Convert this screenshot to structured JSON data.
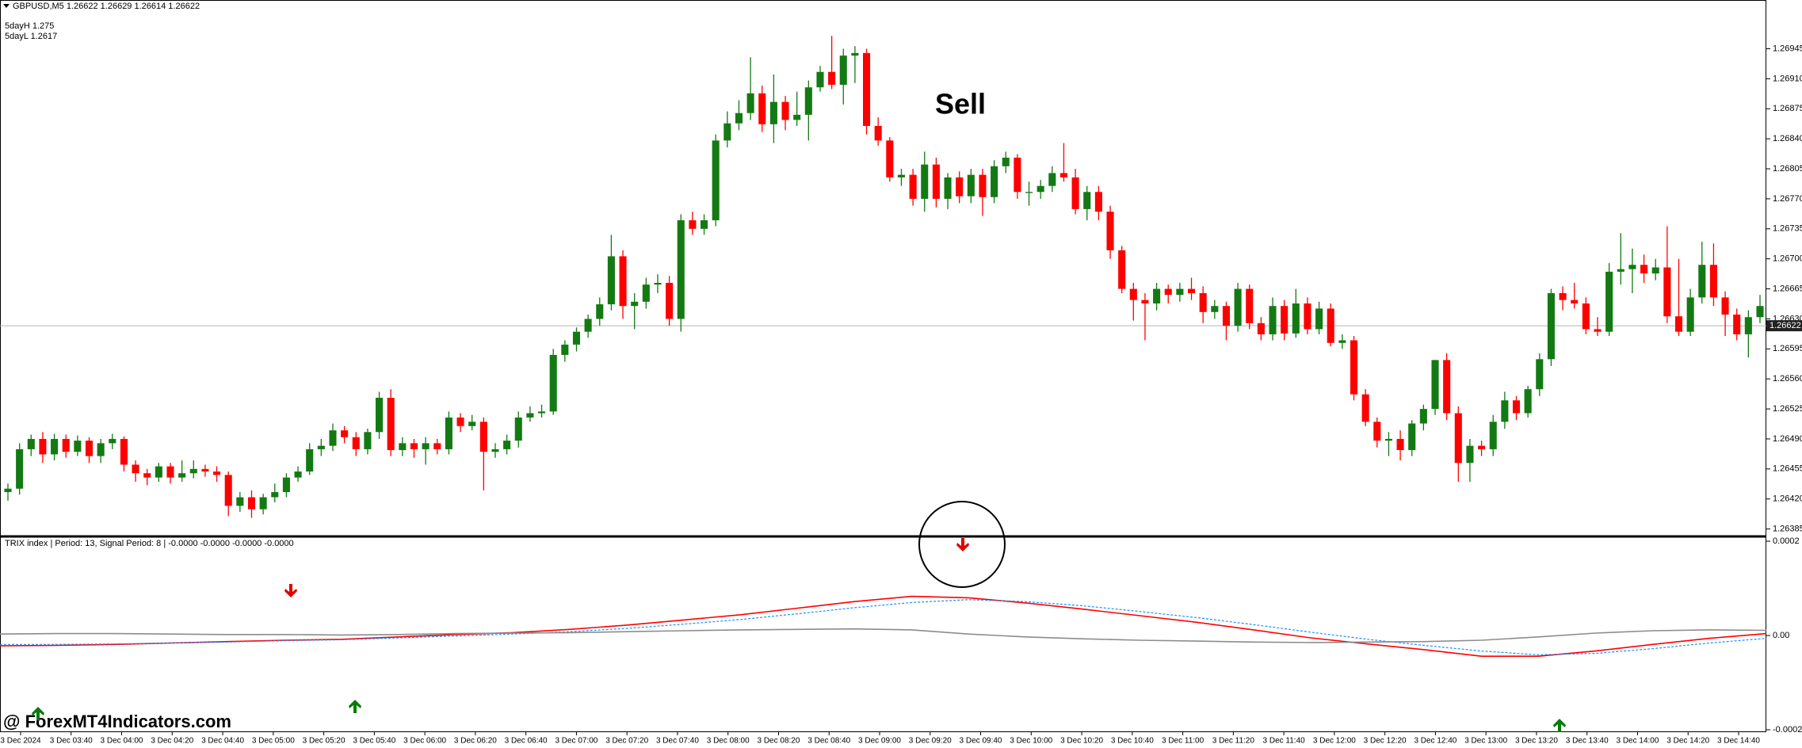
{
  "chart_data": [
    {
      "type": "candlestick",
      "title": "GBPUSD,M5  1.26622 1.26629 1.26614 1.26622",
      "annotations": [
        "5dayH 1.275",
        "5dayL 1.2617",
        "Sell"
      ],
      "up_color": "#137a13",
      "down_color": "#ff0000",
      "current_price": 1.26622,
      "ylim": [
        1.2638,
        1.27
      ],
      "yticks": [
        1.26385,
        {
          "value": 1.2642,
          "label": "1.26420"
        },
        1.26455,
        {
          "value": 1.2649,
          "label": "1.26490"
        },
        1.26525,
        {
          "value": 1.2656,
          "label": "1.26560"
        },
        1.26595,
        {
          "value": 1.2663,
          "label": "1.26630"
        },
        1.26665,
        {
          "value": 1.267,
          "label": "1.26700"
        },
        1.26735,
        {
          "value": 1.2677,
          "label": "1.26770"
        },
        1.26805,
        {
          "value": 1.2684,
          "label": "1.26840"
        },
        1.26875,
        {
          "value": 1.2691,
          "label": "1.26910"
        },
        1.26945
      ],
      "time_labels": [
        "3 Dec 2024",
        "3 Dec 03:40",
        "3 Dec 04:00",
        "3 Dec 04:20",
        "3 Dec 04:40",
        "3 Dec 05:00",
        "3 Dec 05:20",
        "3 Dec 05:40",
        "3 Dec 06:00",
        "3 Dec 06:20",
        "3 Dec 06:40",
        "3 Dec 07:00",
        "3 Dec 07:20",
        "3 Dec 07:40",
        "3 Dec 08:00",
        "3 Dec 08:20",
        "3 Dec 08:40",
        "3 Dec 09:00",
        "3 Dec 09:20",
        "3 Dec 09:40",
        "3 Dec 10:00",
        "3 Dec 10:20",
        "3 Dec 10:40",
        "3 Dec 11:00",
        "3 Dec 11:20",
        "3 Dec 11:40",
        "3 Dec 12:00",
        "3 Dec 12:20",
        "3 Dec 12:40",
        "3 Dec 13:00",
        "3 Dec 13:20",
        "3 Dec 13:40",
        "3 Dec 14:00",
        "3 Dec 14:20",
        "3 Dec 14:40"
      ],
      "ohlc": [
        [
          1.26428,
          1.26438,
          1.26418,
          1.26432
        ],
        [
          1.26432,
          1.26485,
          1.26425,
          1.26478
        ],
        [
          1.26478,
          1.26495,
          1.2647,
          1.2649
        ],
        [
          1.2649,
          1.26498,
          1.26462,
          1.26472
        ],
        [
          1.26472,
          1.26496,
          1.26465,
          1.2649
        ],
        [
          1.2649,
          1.26495,
          1.26468,
          1.26475
        ],
        [
          1.26475,
          1.26494,
          1.2647,
          1.26488
        ],
        [
          1.26488,
          1.26492,
          1.26462,
          1.2647
        ],
        [
          1.2647,
          1.2649,
          1.26462,
          1.26485
        ],
        [
          1.26485,
          1.26496,
          1.26478,
          1.2649
        ],
        [
          1.2649,
          1.26493,
          1.26452,
          1.2646
        ],
        [
          1.2646,
          1.26465,
          1.2644,
          1.2645
        ],
        [
          1.2645,
          1.26455,
          1.26436,
          1.26445
        ],
        [
          1.26445,
          1.26462,
          1.2644,
          1.26458
        ],
        [
          1.26458,
          1.26462,
          1.26438,
          1.26445
        ],
        [
          1.26445,
          1.26465,
          1.2644,
          1.2645
        ],
        [
          1.2645,
          1.26465,
          1.26444,
          1.26455
        ],
        [
          1.26455,
          1.2646,
          1.26446,
          1.26452
        ],
        [
          1.26452,
          1.26458,
          1.2644,
          1.26448
        ],
        [
          1.26448,
          1.26452,
          1.264,
          1.26412
        ],
        [
          1.26412,
          1.26428,
          1.26405,
          1.26422
        ],
        [
          1.26422,
          1.2643,
          1.26398,
          1.26408
        ],
        [
          1.26408,
          1.26426,
          1.26402,
          1.26422
        ],
        [
          1.26422,
          1.26438,
          1.26416,
          1.26428
        ],
        [
          1.26428,
          1.2645,
          1.26422,
          1.26445
        ],
        [
          1.26445,
          1.26458,
          1.2644,
          1.26452
        ],
        [
          1.26452,
          1.26485,
          1.26448,
          1.26478
        ],
        [
          1.26478,
          1.2649,
          1.2647,
          1.26482
        ],
        [
          1.26482,
          1.26508,
          1.26476,
          1.265
        ],
        [
          1.265,
          1.26505,
          1.26485,
          1.26492
        ],
        [
          1.26492,
          1.26498,
          1.2647,
          1.26478
        ],
        [
          1.26478,
          1.26502,
          1.26472,
          1.26498
        ],
        [
          1.26498,
          1.26545,
          1.2649,
          1.26538
        ],
        [
          1.26538,
          1.26548,
          1.2647,
          1.26477
        ],
        [
          1.26477,
          1.26492,
          1.2647,
          1.26485
        ],
        [
          1.26485,
          1.2649,
          1.26468,
          1.26478
        ],
        [
          1.26478,
          1.26492,
          1.2646,
          1.26485
        ],
        [
          1.26485,
          1.2649,
          1.26472,
          1.26478
        ],
        [
          1.26478,
          1.26522,
          1.26472,
          1.26515
        ],
        [
          1.26515,
          1.2652,
          1.26498,
          1.26505
        ],
        [
          1.26505,
          1.26518,
          1.265,
          1.2651
        ],
        [
          1.2651,
          1.26515,
          1.2643,
          1.26475
        ],
        [
          1.26475,
          1.26485,
          1.26468,
          1.26478
        ],
        [
          1.26478,
          1.26495,
          1.26472,
          1.26488
        ],
        [
          1.26488,
          1.26522,
          1.2648,
          1.26515
        ],
        [
          1.26515,
          1.26528,
          1.2651,
          1.2652
        ],
        [
          1.2652,
          1.2653,
          1.26515,
          1.26522
        ],
        [
          1.26522,
          1.26595,
          1.26518,
          1.26588
        ],
        [
          1.26588,
          1.26605,
          1.2658,
          1.266
        ],
        [
          1.266,
          1.2662,
          1.26592,
          1.26615
        ],
        [
          1.26615,
          1.26635,
          1.26608,
          1.2663
        ],
        [
          1.2663,
          1.26655,
          1.26622,
          1.26647
        ],
        [
          1.26647,
          1.26728,
          1.2664,
          1.26703
        ],
        [
          1.26703,
          1.2671,
          1.2663,
          1.26645
        ],
        [
          1.26645,
          1.2666,
          1.26618,
          1.2665
        ],
        [
          1.2665,
          1.26678,
          1.26642,
          1.2667
        ],
        [
          1.2667,
          1.26682,
          1.2666,
          1.26672
        ],
        [
          1.26672,
          1.2668,
          1.26622,
          1.2663
        ],
        [
          1.2663,
          1.26752,
          1.26615,
          1.26745
        ],
        [
          1.26745,
          1.26755,
          1.26728,
          1.26735
        ],
        [
          1.26735,
          1.26752,
          1.26728,
          1.26745
        ],
        [
          1.26745,
          1.26845,
          1.26738,
          1.26838
        ],
        [
          1.26838,
          1.26872,
          1.2683,
          1.26858
        ],
        [
          1.26858,
          1.26885,
          1.2685,
          1.2687
        ],
        [
          1.2687,
          1.26935,
          1.26862,
          1.26893
        ],
        [
          1.26893,
          1.26902,
          1.26848,
          1.26857
        ],
        [
          1.26857,
          1.26915,
          1.26835,
          1.26883
        ],
        [
          1.26883,
          1.2689,
          1.2685,
          1.26862
        ],
        [
          1.26862,
          1.26895,
          1.26855,
          1.26868
        ],
        [
          1.26868,
          1.26908,
          1.26838,
          1.269
        ],
        [
          1.269,
          1.26925,
          1.26895,
          1.26918
        ],
        [
          1.26918,
          1.2696,
          1.26898,
          1.26903
        ],
        [
          1.26903,
          1.26945,
          1.2688,
          1.26937
        ],
        [
          1.26937,
          1.26948,
          1.26905,
          1.2694
        ],
        [
          1.2694,
          1.26945,
          1.26845,
          1.26855
        ],
        [
          1.26855,
          1.26865,
          1.26832,
          1.26838
        ],
        [
          1.26838,
          1.26842,
          1.2679,
          1.26795
        ],
        [
          1.26795,
          1.26805,
          1.26785,
          1.26798
        ],
        [
          1.26798,
          1.26805,
          1.26762,
          1.2677
        ],
        [
          1.2677,
          1.26825,
          1.26755,
          1.2681
        ],
        [
          1.2681,
          1.26818,
          1.2676,
          1.2677
        ],
        [
          1.2677,
          1.268,
          1.26758,
          1.26795
        ],
        [
          1.26795,
          1.26802,
          1.26765,
          1.26773
        ],
        [
          1.26773,
          1.26805,
          1.26765,
          1.26798
        ],
        [
          1.26798,
          1.26805,
          1.2675,
          1.26772
        ],
        [
          1.26772,
          1.26815,
          1.26765,
          1.26808
        ],
        [
          1.26808,
          1.26825,
          1.268,
          1.26818
        ],
        [
          1.26818,
          1.26822,
          1.2677,
          1.26778
        ],
        [
          1.26778,
          1.2679,
          1.26762,
          1.26778
        ],
        [
          1.26778,
          1.26792,
          1.2677,
          1.26785
        ],
        [
          1.26785,
          1.26808,
          1.26778,
          1.268
        ],
        [
          1.268,
          1.26835,
          1.2679,
          1.26795
        ],
        [
          1.26795,
          1.26805,
          1.26752,
          1.26758
        ],
        [
          1.26758,
          1.26785,
          1.26745,
          1.26778
        ],
        [
          1.26778,
          1.26785,
          1.26745,
          1.26755
        ],
        [
          1.26755,
          1.26762,
          1.267,
          1.2671
        ],
        [
          1.2671,
          1.26715,
          1.2666,
          1.26665
        ],
        [
          1.26665,
          1.26672,
          1.26628,
          1.26652
        ],
        [
          1.26652,
          1.2666,
          1.26605,
          1.26648
        ],
        [
          1.26648,
          1.26672,
          1.2664,
          1.26665
        ],
        [
          1.26665,
          1.2667,
          1.26648,
          1.26658
        ],
        [
          1.26658,
          1.26672,
          1.2665,
          1.26665
        ],
        [
          1.26665,
          1.26678,
          1.26652,
          1.2666
        ],
        [
          1.2666,
          1.26668,
          1.26625,
          1.26638
        ],
        [
          1.26638,
          1.26652,
          1.2663,
          1.26645
        ],
        [
          1.26645,
          1.2665,
          1.26605,
          1.26622
        ],
        [
          1.26622,
          1.26672,
          1.26615,
          1.26665
        ],
        [
          1.26665,
          1.2667,
          1.26618,
          1.26625
        ],
        [
          1.26625,
          1.26632,
          1.26605,
          1.26612
        ],
        [
          1.26612,
          1.26655,
          1.26605,
          1.26645
        ],
        [
          1.26645,
          1.26652,
          1.26605,
          1.26613
        ],
        [
          1.26613,
          1.26665,
          1.26608,
          1.26648
        ],
        [
          1.26648,
          1.26655,
          1.26612,
          1.26618
        ],
        [
          1.26618,
          1.2665,
          1.26612,
          1.26642
        ],
        [
          1.26642,
          1.26648,
          1.26598,
          1.26602
        ],
        [
          1.26602,
          1.26612,
          1.26595,
          1.26605
        ],
        [
          1.26605,
          1.2661,
          1.26535,
          1.26542
        ],
        [
          1.26542,
          1.26548,
          1.26505,
          1.2651
        ],
        [
          1.2651,
          1.26515,
          1.2648,
          1.26488
        ],
        [
          1.26488,
          1.26498,
          1.2647,
          1.2649
        ],
        [
          1.2649,
          1.265,
          1.26465,
          1.26477
        ],
        [
          1.26477,
          1.26512,
          1.2647,
          1.26508
        ],
        [
          1.26508,
          1.2653,
          1.265,
          1.26525
        ],
        [
          1.26525,
          1.26582,
          1.26518,
          1.26582
        ],
        [
          1.26582,
          1.2659,
          1.26512,
          1.2652
        ],
        [
          1.2652,
          1.26528,
          1.2644,
          1.26462
        ],
        [
          1.26462,
          1.2649,
          1.2644,
          1.26482
        ],
        [
          1.26482,
          1.26488,
          1.2647,
          1.26478
        ],
        [
          1.26478,
          1.26518,
          1.2647,
          1.2651
        ],
        [
          1.2651,
          1.26545,
          1.26502,
          1.26535
        ],
        [
          1.26535,
          1.2654,
          1.26512,
          1.2652
        ],
        [
          1.2652,
          1.26552,
          1.26515,
          1.26548
        ],
        [
          1.26548,
          1.2659,
          1.2654,
          1.26583
        ],
        [
          1.26583,
          1.26665,
          1.26575,
          1.2666
        ],
        [
          1.2666,
          1.26668,
          1.2664,
          1.26652
        ],
        [
          1.26652,
          1.26672,
          1.26642,
          1.26648
        ],
        [
          1.26648,
          1.26655,
          1.26612,
          1.26618
        ],
        [
          1.26618,
          1.26632,
          1.2661,
          1.26615
        ],
        [
          1.26615,
          1.26695,
          1.2661,
          1.26685
        ],
        [
          1.26685,
          1.2673,
          1.2667,
          1.26688
        ],
        [
          1.26688,
          1.26712,
          1.2666,
          1.26693
        ],
        [
          1.26693,
          1.26705,
          1.26672,
          1.26683
        ],
        [
          1.26683,
          1.267,
          1.26675,
          1.2669
        ],
        [
          1.2669,
          1.26738,
          1.26625,
          1.26633
        ],
        [
          1.26633,
          1.267,
          1.2661,
          1.26615
        ],
        [
          1.26615,
          1.26665,
          1.2661,
          1.26655
        ],
        [
          1.26655,
          1.2672,
          1.26648,
          1.26693
        ],
        [
          1.26693,
          1.26718,
          1.26645,
          1.26655
        ],
        [
          1.26655,
          1.26662,
          1.2661,
          1.26635
        ],
        [
          1.26635,
          1.26642,
          1.26605,
          1.26612
        ],
        [
          1.26612,
          1.2664,
          1.26585,
          1.26632
        ],
        [
          1.26632,
          1.26658,
          1.26625,
          1.26645
        ]
      ]
    },
    {
      "type": "line",
      "title": "TRIX index | Period: 13, Signal Period: 8 | -0.0000 -0.0000 -0.0000 -0.0000",
      "ylim": [
        -0.0002,
        0.0002
      ],
      "yticks": [
        0.0002,
        {
          "value": 0,
          "label": "0.00"
        },
        -0.0002
      ],
      "series": [
        {
          "color": "#ff0000",
          "dashed": false,
          "values": [
            -2.2e-05,
            -2.1e-05,
            -1.9e-05,
            -1.6e-05,
            -1.3e-05,
            -1e-05,
            -8e-06,
            -3e-06,
            2e-06,
            6e-06,
            1.3e-05,
            2.2e-05,
            3.3e-05,
            4.4e-05,
            5.8e-05,
            7.2e-05,
            8.3e-05,
            8e-05,
            6.9e-05,
            5.6e-05,
            4.2e-05,
            2.8e-05,
            1.2e-05,
            -5e-06,
            -1.8e-05,
            -3e-05,
            -4.4e-05,
            -4.4e-05,
            -3.3e-05,
            -1.9e-05,
            -6e-06,
            4e-06
          ]
        },
        {
          "color": "#1e90ff",
          "dashed": true,
          "values": [
            -1.9e-05,
            -1.9e-05,
            -1.8e-05,
            -1.6e-05,
            -1.4e-05,
            -1.1e-05,
            -9e-06,
            -5e-06,
            -1e-06,
            3e-06,
            8e-06,
            1.5e-05,
            2.4e-05,
            3.4e-05,
            4.6e-05,
            5.9e-05,
            7e-05,
            7.6e-05,
            7.2e-05,
            6.3e-05,
            5.1e-05,
            3.8e-05,
            2.3e-05,
            7e-06,
            -8e-06,
            -2.1e-05,
            -3.3e-05,
            -4.1e-05,
            -3.8e-05,
            -2.8e-05,
            -1.6e-05,
            -6e-06
          ]
        },
        {
          "color": "#8c8c8c",
          "dashed": false,
          "values": [
            3e-06,
            4e-06,
            4e-06,
            3e-06,
            2e-06,
            2e-06,
            1e-06,
            2e-06,
            4e-06,
            5e-06,
            6e-06,
            8e-06,
            1e-05,
            1.2e-05,
            1.3e-05,
            1.4e-05,
            1.2e-05,
            3e-06,
            -3e-06,
            -7e-06,
            -1e-05,
            -1.2e-05,
            -1.4e-05,
            -1.5e-05,
            -1.4e-05,
            -1.3e-05,
            -1e-05,
            -3e-06,
            5e-06,
            1e-05,
            1.2e-05,
            1.1e-05
          ]
        }
      ]
    },
    {
      "type": "text",
      "watermark": "@ ForexMT4Indicators.com"
    }
  ]
}
